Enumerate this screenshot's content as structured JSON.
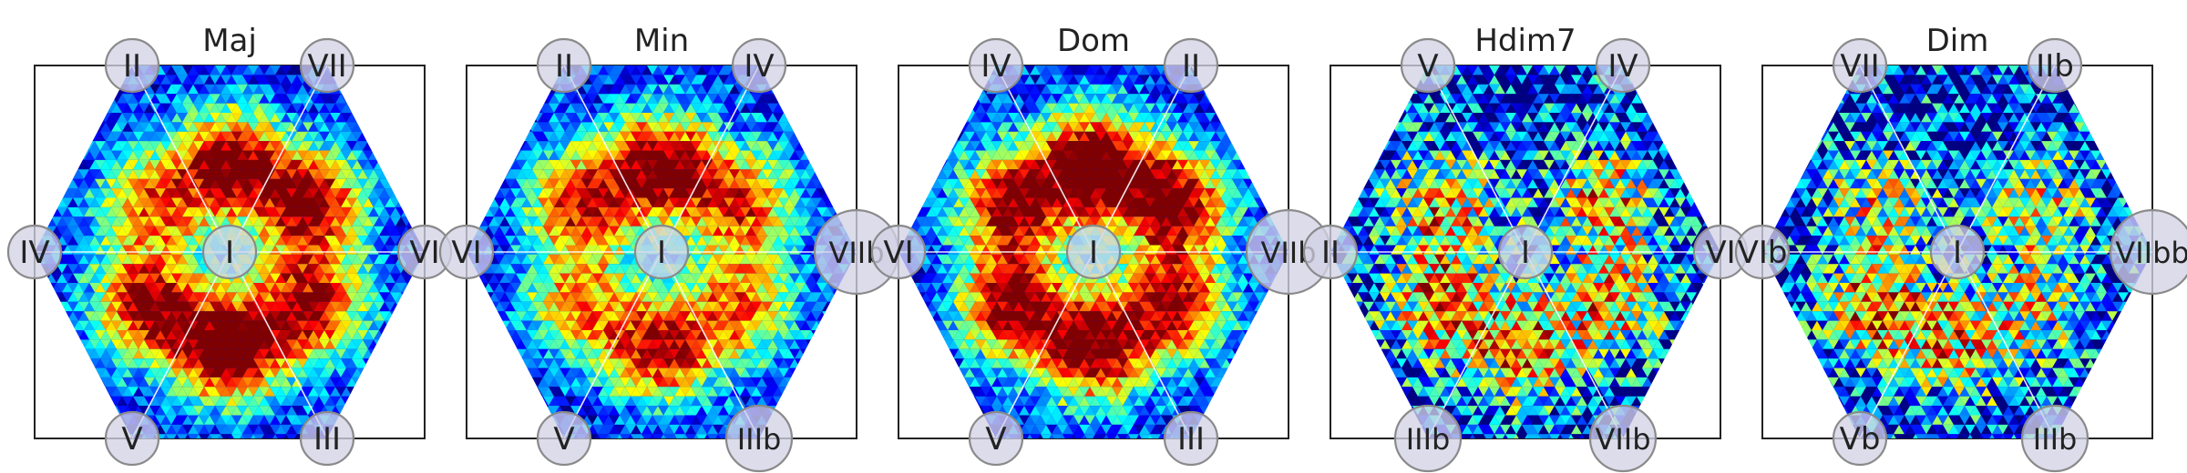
{
  "chart_data": [
    {
      "type": "heatmap",
      "title": "Maj",
      "colormap": "jet",
      "shape": "hexagon",
      "nodes": {
        "center": "I",
        "top_left": "II",
        "top_right": "VII",
        "left": "IV",
        "right": "VI",
        "bottom_left": "V",
        "bottom_right": "III"
      },
      "hotspots": [
        {
          "near": "V",
          "intensity": 0.85
        },
        {
          "near": "III",
          "intensity": 0.8
        },
        {
          "near": "bottom",
          "intensity": 1.0
        },
        {
          "near": "top-center",
          "intensity": 0.9
        },
        {
          "near": "upper-right",
          "intensity": 0.85
        },
        {
          "near": "upper-left",
          "intensity": 0.6
        }
      ]
    },
    {
      "type": "heatmap",
      "title": "Min",
      "colormap": "jet",
      "shape": "hexagon",
      "nodes": {
        "center": "I",
        "top_left": "II",
        "top_right": "IV",
        "left": "VI",
        "right": "VIIb",
        "bottom_left": "V",
        "bottom_right": "IIIb"
      },
      "hotspots": [
        {
          "near": "top-center",
          "intensity": 0.9
        },
        {
          "near": "upper-left",
          "intensity": 0.75
        },
        {
          "near": "upper-right",
          "intensity": 0.7
        },
        {
          "near": "lower-left",
          "intensity": 0.6
        },
        {
          "near": "bottom",
          "intensity": 0.8
        },
        {
          "near": "lower-right",
          "intensity": 0.6
        }
      ]
    },
    {
      "type": "heatmap",
      "title": "Dom",
      "colormap": "jet",
      "shape": "hexagon",
      "nodes": {
        "center": "I",
        "top_left": "IV",
        "top_right": "II",
        "left": "VI",
        "right": "VIIb",
        "bottom_left": "V",
        "bottom_right": "III"
      },
      "hotspots": [
        {
          "near": "top-center",
          "intensity": 1.0
        },
        {
          "near": "upper-left",
          "intensity": 0.85
        },
        {
          "near": "upper-right",
          "intensity": 0.9
        },
        {
          "near": "lower-left",
          "intensity": 0.85
        },
        {
          "near": "bottom",
          "intensity": 0.9
        },
        {
          "near": "lower-right",
          "intensity": 0.8
        }
      ]
    },
    {
      "type": "heatmap",
      "title": "Hdim7",
      "colormap": "jet",
      "shape": "hexagon",
      "nodes": {
        "center": "I",
        "top_left": "V",
        "top_right": "IV",
        "left": "II",
        "right": "VI",
        "bottom_left": "IIIb",
        "bottom_right": "VIIb"
      },
      "hotspots": [
        {
          "near": "upper-left",
          "intensity": 0.55
        },
        {
          "near": "upper-right",
          "intensity": 0.55
        },
        {
          "near": "lower-left",
          "intensity": 0.65
        },
        {
          "near": "lower-right",
          "intensity": 0.5
        },
        {
          "near": "bottom",
          "intensity": 0.55
        }
      ]
    },
    {
      "type": "heatmap",
      "title": "Dim",
      "colormap": "jet",
      "shape": "hexagon",
      "nodes": {
        "center": "I",
        "top_left": "VII",
        "top_right": "IIb",
        "left": "VIb",
        "right": "VIIbb",
        "bottom_left": "Vb",
        "bottom_right": "IIIb"
      },
      "hotspots": [
        {
          "near": "lower-left",
          "intensity": 0.65
        },
        {
          "near": "bottom",
          "intensity": 0.5
        },
        {
          "near": "upper-right",
          "intensity": 0.45
        },
        {
          "near": "upper-left",
          "intensity": 0.4
        },
        {
          "near": "lower-right",
          "intensity": 0.4
        }
      ]
    }
  ]
}
